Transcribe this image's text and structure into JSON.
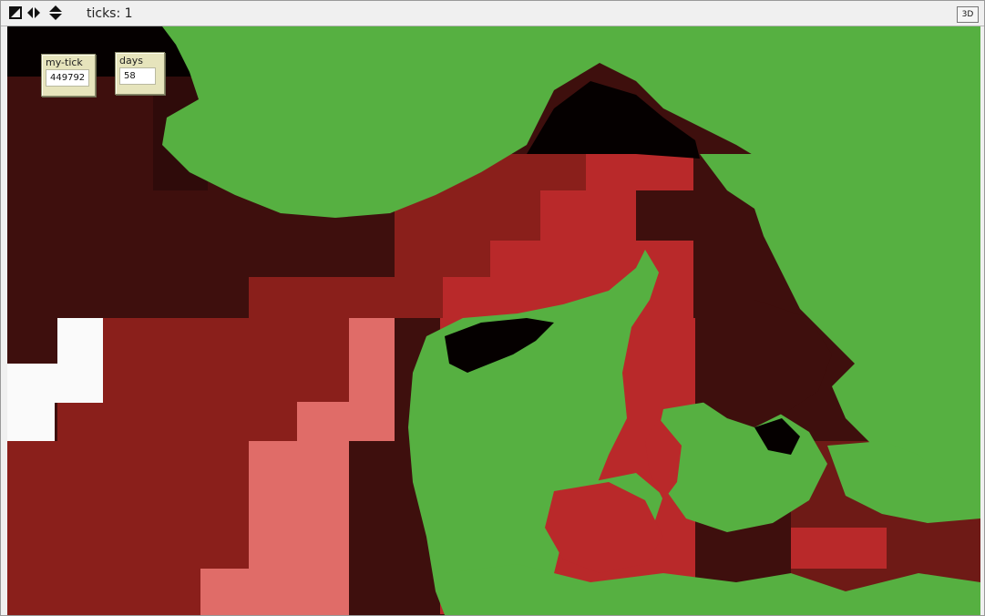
{
  "toolbar": {
    "ticks_text": "ticks: 1",
    "btn_3d": "3D",
    "icons": [
      "edit-world-icon",
      "horizontal-arrows-icon",
      "vertical-arrows-icon"
    ]
  },
  "monitors": {
    "my_tick": {
      "label": "my-tick",
      "value": "449792"
    },
    "days": {
      "label": "days",
      "value": "58"
    }
  },
  "colors": {
    "land": "#56b041",
    "deep_sea": "#050000",
    "dark_maroon": "#3e0f0d",
    "maroon": "#6e1a16",
    "red_brown": "#8a1f1b",
    "red": "#b9292a",
    "salmon": "#e06c68",
    "white": "#fafafa",
    "toolbar_bg": "#f0f0f0",
    "monitor_bg": "#e6e4bc"
  }
}
